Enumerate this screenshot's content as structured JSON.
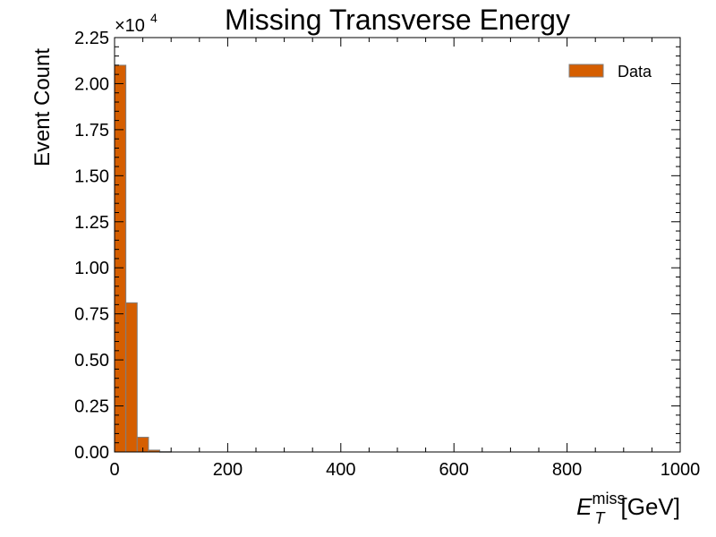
{
  "chart_data": {
    "type": "bar",
    "title": "Missing Transverse Energy",
    "xlabel_main": "E",
    "xlabel_sup": "miss",
    "xlabel_sub": "T",
    "xlabel_unit": "[GeV]",
    "ylabel": "Event Count",
    "y_multiplier_base": "×10",
    "y_multiplier_exp": "4",
    "xlim": [
      0,
      1000
    ],
    "ylim": [
      0,
      22500
    ],
    "x_ticks": [
      "0",
      "200",
      "400",
      "600",
      "800",
      "1000"
    ],
    "y_ticks": [
      "0.00",
      "0.25",
      "0.50",
      "0.75",
      "1.00",
      "1.25",
      "1.50",
      "1.75",
      "2.00",
      "2.25"
    ],
    "bin_width": 20,
    "bin_edges": [
      0,
      20,
      40,
      60,
      80,
      100
    ],
    "values": [
      21000,
      8100,
      800,
      100,
      15
    ],
    "grid": false,
    "legend_position": "top-right",
    "series": [
      {
        "name": "Data",
        "color": "#d55e00",
        "edgecolor": "#7f7f7f"
      }
    ]
  }
}
